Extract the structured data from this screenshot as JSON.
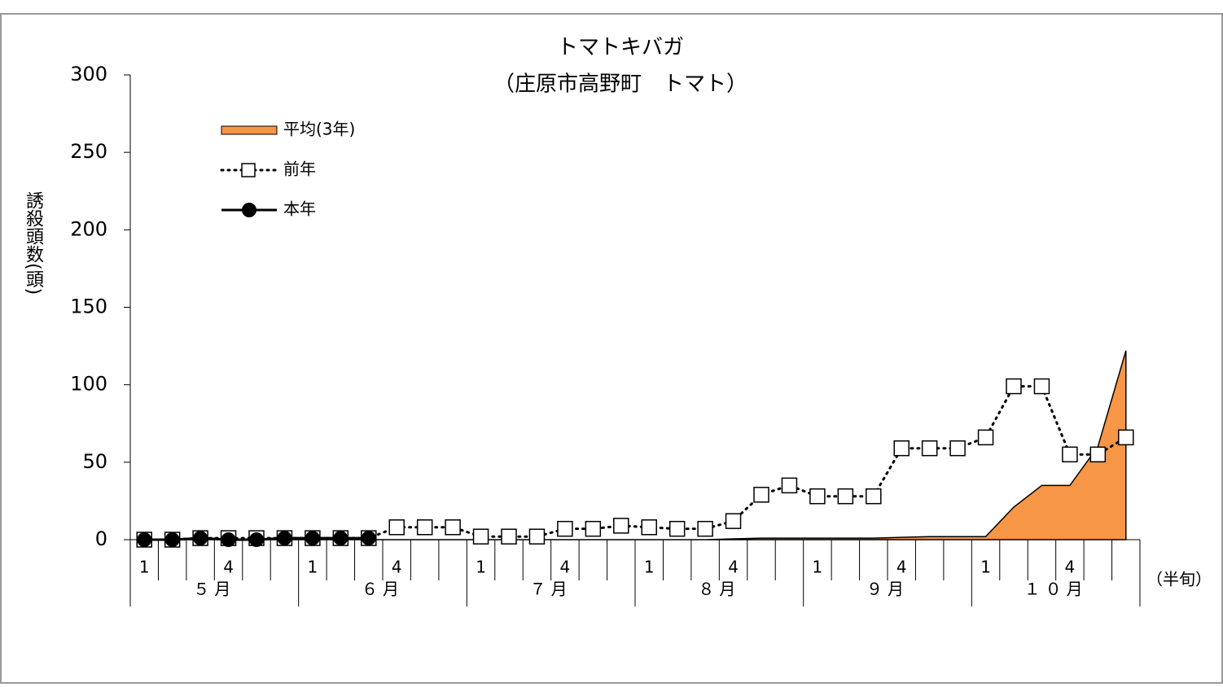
{
  "chart_data": {
    "type": "line",
    "title": "トマトキバガ",
    "subtitle": "（庄原市高野町　トマト）",
    "y_label": "誘殺頭数(頭)",
    "x_unit": "（半旬）",
    "categories": [
      "1",
      null,
      null,
      "4",
      null,
      null,
      "1",
      null,
      null,
      "4",
      null,
      null,
      "1",
      null,
      null,
      "4",
      null,
      null,
      "1",
      null,
      null,
      "4",
      null,
      null,
      "1",
      null,
      null,
      "4",
      null,
      null,
      "1",
      null,
      null,
      "4",
      null,
      null
    ],
    "x_groups": [
      "５月",
      "６月",
      "７月",
      "８月",
      "９月",
      "１０月"
    ],
    "ylim": [
      0,
      300
    ],
    "yticks": [
      0,
      50,
      100,
      150,
      200,
      250,
      300
    ],
    "legend": "top-left",
    "series": [
      {
        "name": "平均(3年)",
        "color": "#f79646",
        "kind": "area",
        "values": [
          0,
          0,
          0,
          0,
          0,
          0,
          0,
          0,
          0,
          0,
          0,
          0,
          0,
          0,
          0,
          0,
          0,
          0,
          0,
          0,
          0,
          0.5,
          1,
          1,
          1,
          1,
          1,
          1.5,
          2,
          2,
          2,
          21,
          35,
          35,
          60,
          122
        ]
      },
      {
        "name": "前年",
        "color": "#000000",
        "kind": "dotted-square",
        "values": [
          0,
          0,
          1,
          1,
          1,
          1,
          1,
          1,
          1,
          8,
          8,
          8,
          2,
          2,
          2,
          7,
          7,
          9,
          8,
          7,
          7,
          12,
          29,
          35,
          28,
          28,
          28,
          59,
          59,
          59,
          66,
          99,
          99,
          55,
          55,
          66
        ]
      },
      {
        "name": "本年",
        "color": "#000000",
        "kind": "solid-circle",
        "values": [
          0,
          0,
          1,
          0,
          0,
          1,
          1,
          1,
          1,
          null,
          null,
          null,
          null,
          null,
          null,
          null,
          null,
          null,
          null,
          null,
          null,
          null,
          null,
          null,
          null,
          null,
          null,
          null,
          null,
          null,
          null,
          null,
          null,
          null,
          null,
          null
        ]
      }
    ]
  }
}
